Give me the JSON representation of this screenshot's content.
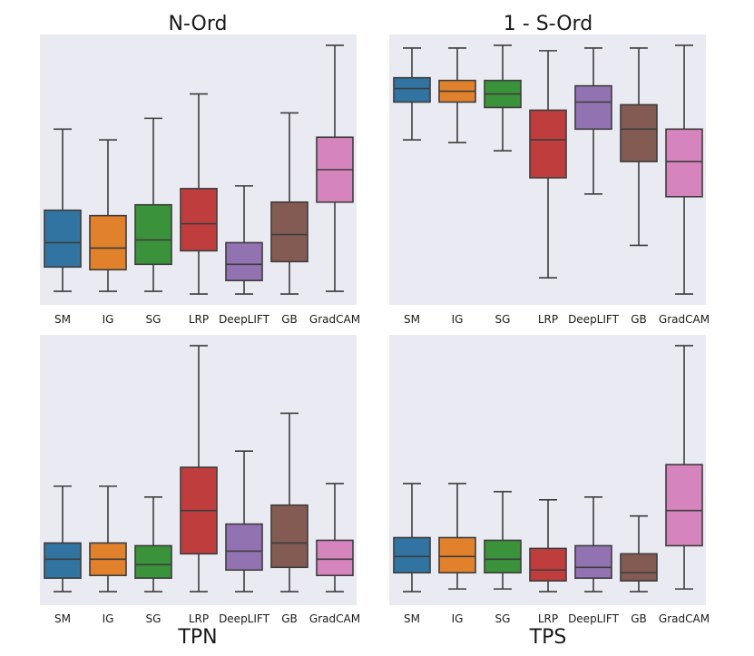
{
  "figure": {
    "background": "#ffffff",
    "panel_background": "#eaeaf2"
  },
  "chart_data": [
    {
      "type": "box",
      "title": "N-Ord",
      "title_position": "top",
      "categories": [
        "SM",
        "IG",
        "SG",
        "LRP",
        "DeepLIFT",
        "GB",
        "GradCAM"
      ],
      "colors": [
        "#3274a1",
        "#e1812c",
        "#3a923a",
        "#c03d3e",
        "#9372b2",
        "#845b53",
        "#d684bd"
      ],
      "ylim": [
        0,
        1
      ],
      "boxes": [
        {
          "min": 0.05,
          "q1": 0.14,
          "median": 0.23,
          "q3": 0.35,
          "max": 0.65
        },
        {
          "min": 0.05,
          "q1": 0.13,
          "median": 0.21,
          "q3": 0.33,
          "max": 0.61
        },
        {
          "min": 0.05,
          "q1": 0.15,
          "median": 0.24,
          "q3": 0.37,
          "max": 0.69
        },
        {
          "min": 0.04,
          "q1": 0.2,
          "median": 0.3,
          "q3": 0.43,
          "max": 0.78
        },
        {
          "min": 0.04,
          "q1": 0.09,
          "median": 0.15,
          "q3": 0.23,
          "max": 0.44
        },
        {
          "min": 0.04,
          "q1": 0.16,
          "median": 0.26,
          "q3": 0.38,
          "max": 0.71
        },
        {
          "min": 0.05,
          "q1": 0.38,
          "median": 0.5,
          "q3": 0.62,
          "max": 0.96
        }
      ]
    },
    {
      "type": "box",
      "title": "1 - S-Ord",
      "title_position": "top",
      "categories": [
        "SM",
        "IG",
        "SG",
        "LRP",
        "DeepLIFT",
        "GB",
        "GradCAM"
      ],
      "colors": [
        "#3274a1",
        "#e1812c",
        "#3a923a",
        "#c03d3e",
        "#9372b2",
        "#845b53",
        "#d684bd"
      ],
      "ylim": [
        0,
        1
      ],
      "boxes": [
        {
          "min": 0.61,
          "q1": 0.75,
          "median": 0.8,
          "q3": 0.84,
          "max": 0.95
        },
        {
          "min": 0.6,
          "q1": 0.75,
          "median": 0.79,
          "q3": 0.83,
          "max": 0.95
        },
        {
          "min": 0.57,
          "q1": 0.73,
          "median": 0.78,
          "q3": 0.83,
          "max": 0.96
        },
        {
          "min": 0.1,
          "q1": 0.47,
          "median": 0.61,
          "q3": 0.72,
          "max": 0.94
        },
        {
          "min": 0.41,
          "q1": 0.65,
          "median": 0.75,
          "q3": 0.81,
          "max": 0.95
        },
        {
          "min": 0.22,
          "q1": 0.53,
          "median": 0.65,
          "q3": 0.74,
          "max": 0.95
        },
        {
          "min": 0.04,
          "q1": 0.4,
          "median": 0.53,
          "q3": 0.65,
          "max": 0.96
        }
      ]
    },
    {
      "type": "box",
      "title": "TPN",
      "title_position": "bottom",
      "categories": [
        "SM",
        "IG",
        "SG",
        "LRP",
        "DeepLIFT",
        "GB",
        "GradCAM"
      ],
      "colors": [
        "#3274a1",
        "#e1812c",
        "#3a923a",
        "#c03d3e",
        "#9372b2",
        "#845b53",
        "#d684bd"
      ],
      "ylim": [
        0,
        1
      ],
      "boxes": [
        {
          "min": 0.05,
          "q1": 0.1,
          "median": 0.17,
          "q3": 0.23,
          "max": 0.44
        },
        {
          "min": 0.05,
          "q1": 0.11,
          "median": 0.17,
          "q3": 0.23,
          "max": 0.44
        },
        {
          "min": 0.05,
          "q1": 0.1,
          "median": 0.15,
          "q3": 0.22,
          "max": 0.4
        },
        {
          "min": 0.05,
          "q1": 0.19,
          "median": 0.35,
          "q3": 0.51,
          "max": 0.96
        },
        {
          "min": 0.05,
          "q1": 0.13,
          "median": 0.2,
          "q3": 0.3,
          "max": 0.57
        },
        {
          "min": 0.05,
          "q1": 0.14,
          "median": 0.23,
          "q3": 0.37,
          "max": 0.71
        },
        {
          "min": 0.05,
          "q1": 0.11,
          "median": 0.17,
          "q3": 0.24,
          "max": 0.45
        }
      ]
    },
    {
      "type": "box",
      "title": "TPS",
      "title_position": "bottom",
      "categories": [
        "SM",
        "IG",
        "SG",
        "LRP",
        "DeepLIFT",
        "GB",
        "GradCAM"
      ],
      "colors": [
        "#3274a1",
        "#e1812c",
        "#3a923a",
        "#c03d3e",
        "#9372b2",
        "#845b53",
        "#d684bd"
      ],
      "ylim": [
        0,
        1
      ],
      "boxes": [
        {
          "min": 0.05,
          "q1": 0.12,
          "median": 0.18,
          "q3": 0.25,
          "max": 0.45
        },
        {
          "min": 0.06,
          "q1": 0.12,
          "median": 0.18,
          "q3": 0.25,
          "max": 0.45
        },
        {
          "min": 0.06,
          "q1": 0.12,
          "median": 0.17,
          "q3": 0.24,
          "max": 0.42
        },
        {
          "min": 0.05,
          "q1": 0.09,
          "median": 0.13,
          "q3": 0.21,
          "max": 0.39
        },
        {
          "min": 0.05,
          "q1": 0.1,
          "median": 0.14,
          "q3": 0.22,
          "max": 0.4
        },
        {
          "min": 0.05,
          "q1": 0.09,
          "median": 0.12,
          "q3": 0.19,
          "max": 0.33
        },
        {
          "min": 0.06,
          "q1": 0.22,
          "median": 0.35,
          "q3": 0.52,
          "max": 0.96
        }
      ]
    }
  ]
}
